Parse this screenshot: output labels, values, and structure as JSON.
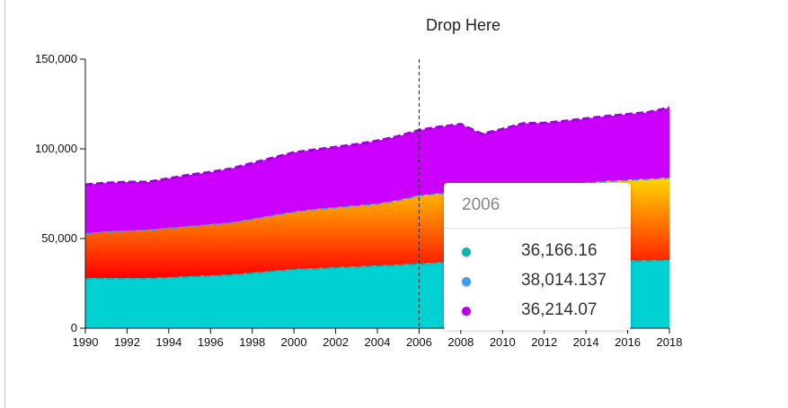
{
  "drop_zone": {
    "label": "Drop Here"
  },
  "chart_data": {
    "type": "area",
    "stacked": true,
    "x": [
      1990,
      1991,
      1992,
      1993,
      1994,
      1995,
      1996,
      1997,
      1998,
      1999,
      2000,
      2001,
      2002,
      2003,
      2004,
      2005,
      2006,
      2007,
      2008,
      2009,
      2010,
      2011,
      2012,
      2013,
      2014,
      2015,
      2016,
      2017,
      2018
    ],
    "xticks": [
      1990,
      1992,
      1994,
      1996,
      1998,
      2000,
      2002,
      2004,
      2006,
      2008,
      2010,
      2012,
      2014,
      2016,
      2018
    ],
    "xtick_labels": [
      "1990",
      "1992",
      "1994",
      "1996",
      "1998",
      "2000",
      "2002",
      "2004",
      "2006",
      "2008",
      "2010",
      "2012",
      "2014",
      "2016",
      "2018"
    ],
    "xlim": [
      1990,
      2018
    ],
    "ylim": [
      0,
      150000
    ],
    "yticks": [
      0,
      50000,
      100000,
      150000
    ],
    "ytick_labels": [
      "0",
      "50,000",
      "100,000",
      "150,000"
    ],
    "grid": false,
    "series": [
      {
        "color": "#00d2d3",
        "values": [
          28000,
          28000,
          28000,
          28000,
          28500,
          29000,
          29500,
          30000,
          31000,
          32000,
          33000,
          33500,
          34000,
          34500,
          35000,
          35500,
          36166,
          36800,
          37200,
          36500,
          37000,
          37200,
          37400,
          37500,
          37600,
          37700,
          37800,
          37900,
          38000
        ]
      },
      {
        "color_top": "#ffd700",
        "color_bottom": "#ff0000",
        "values": [
          25000,
          26000,
          26500,
          27000,
          27500,
          28000,
          28500,
          29000,
          30000,
          31000,
          32000,
          33000,
          33500,
          34000,
          34500,
          36000,
          38014,
          38500,
          39000,
          38800,
          39500,
          40500,
          41500,
          42500,
          43500,
          44500,
          45000,
          45500,
          46000
        ]
      },
      {
        "color": "#cc00ff",
        "values": [
          27000,
          27000,
          27000,
          26500,
          27500,
          28500,
          29000,
          30000,
          31000,
          32000,
          33000,
          33000,
          33500,
          34000,
          35000,
          35500,
          36214,
          37000,
          37500,
          33000,
          34500,
          36500,
          35500,
          35500,
          35800,
          36000,
          36500,
          37000,
          39000
        ]
      }
    ],
    "highlight": {
      "x": 2006
    }
  },
  "tooltip": {
    "title": "2006",
    "rows": [
      {
        "value": "36,166.16",
        "color": "#0fb5ae"
      },
      {
        "value": "38,014.137",
        "color": "#3b9cf5"
      },
      {
        "value": "36,214.07",
        "color": "#b700e6"
      }
    ]
  }
}
